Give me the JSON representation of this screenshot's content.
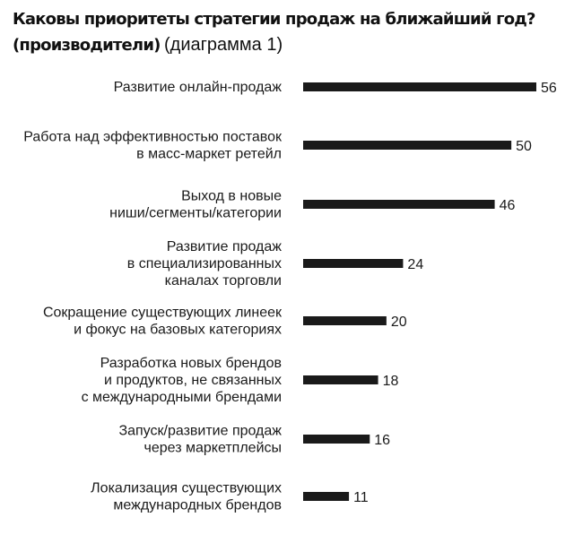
{
  "chart_data": {
    "type": "bar",
    "orientation": "horizontal",
    "title": "Каковы приоритеты стратегии продаж на ближайший год?",
    "subtitle_bold": "(производители)",
    "subtitle": "(диаграмма 1)",
    "xlabel": "",
    "ylabel": "",
    "xlim": [
      0,
      56
    ],
    "grid": false,
    "legend": "none",
    "bar_color": "#1a1a1a",
    "categories": [
      [
        "Развитие онлайн-продаж"
      ],
      [
        "Работа над эффективностью поставок",
        "в масс-маркет ретейл"
      ],
      [
        "Выход в новые",
        "ниши/сегменты/категории"
      ],
      [
        "Развитие продаж",
        "в специализированных",
        "каналах торговли"
      ],
      [
        "Сокращение существующих линеек",
        "и фокус на базовых категориях"
      ],
      [
        "Разработка новых брендов",
        "и продуктов, не связанных",
        "с международными брендами"
      ],
      [
        "Запуск/развитие продаж",
        "через маркетплейсы"
      ],
      [
        "Локализация существующих",
        "международных брендов"
      ]
    ],
    "values": [
      56,
      50,
      46,
      24,
      20,
      18,
      16,
      11
    ]
  }
}
